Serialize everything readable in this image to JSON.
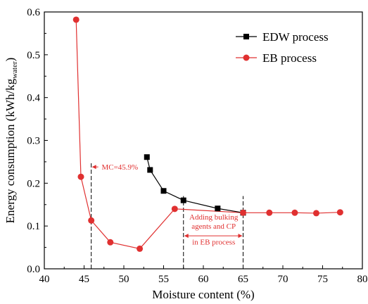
{
  "chart_data": {
    "type": "line",
    "xlabel": "Moisture content (%)",
    "ylabel": "Energy consumption (kWh/kg",
    "ylabel_sub": "water",
    "ylabel_close": ")",
    "xlim": [
      40,
      80
    ],
    "ylim": [
      0,
      0.6
    ],
    "x_ticks": [
      40,
      45,
      50,
      55,
      60,
      65,
      70,
      75,
      80
    ],
    "y_ticks": [
      0.0,
      0.1,
      0.2,
      0.3,
      0.4,
      0.5,
      0.6
    ],
    "y_tick_labels": [
      "0.0",
      "0.1",
      "0.2",
      "0.3",
      "0.4",
      "0.5",
      "0.6"
    ],
    "grid": false,
    "legend_position": "top-right",
    "series": [
      {
        "name": "EDW process",
        "color": "#000000",
        "marker": "square",
        "x": [
          52.9,
          53.3,
          55.0,
          57.5,
          61.8,
          65.0
        ],
        "y": [
          0.261,
          0.231,
          0.182,
          0.16,
          0.141,
          0.131
        ]
      },
      {
        "name": "EB process",
        "color": "#e03030",
        "marker": "circle",
        "x": [
          44.0,
          44.6,
          45.9,
          48.3,
          52.0,
          56.4,
          65.0,
          68.3,
          71.5,
          74.2,
          77.2
        ],
        "y": [
          0.582,
          0.215,
          0.113,
          0.062,
          0.047,
          0.14,
          0.131,
          0.131,
          0.131,
          0.13,
          0.132
        ]
      }
    ],
    "vlines": [
      {
        "x": 45.9,
        "ymax": 0.25
      },
      {
        "x": 57.5,
        "ymax": 0.17
      },
      {
        "x": 65.0,
        "ymax": 0.17
      }
    ],
    "annotations": [
      {
        "lines": [
          "MC=45.9%"
        ],
        "x": 49.5,
        "y": 0.238
      },
      {
        "lines": [
          "Adding bulking",
          "agents and CP",
          "in EB process"
        ],
        "x": 61.3,
        "y": 0.115
      }
    ]
  }
}
